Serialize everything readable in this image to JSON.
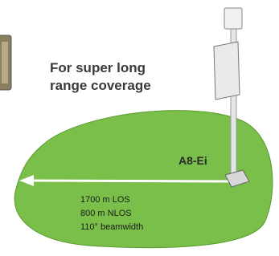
{
  "heading": [
    "For super long",
    "range coverage"
  ],
  "device": {
    "label": "A8-Ei"
  },
  "specs": [
    "1700 m LOS",
    "800 m NLOS",
    "110° beamwidth"
  ]
}
